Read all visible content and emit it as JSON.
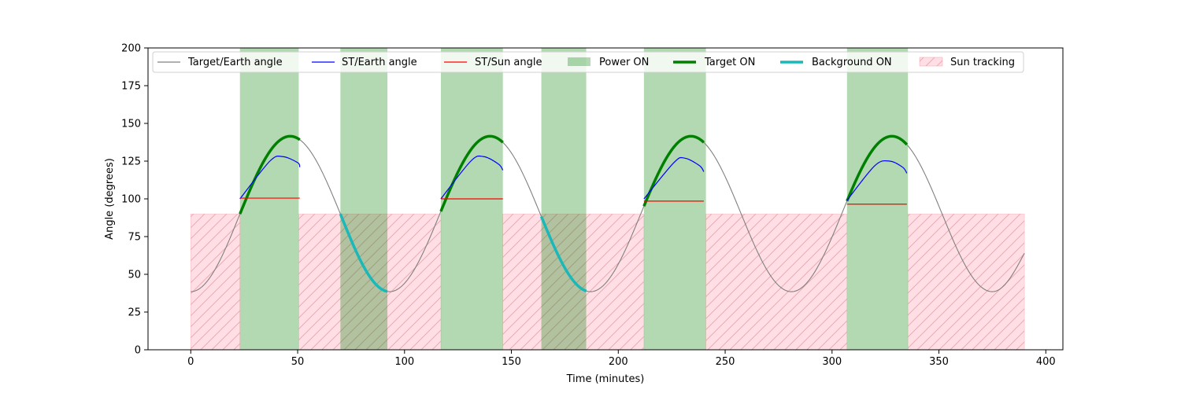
{
  "chart_data": {
    "type": "line",
    "xlabel": "Time (minutes)",
    "ylabel": "Angle (degrees)",
    "xlim": [
      -20,
      408
    ],
    "ylim": [
      0,
      200
    ],
    "xticks": [
      0,
      50,
      100,
      150,
      200,
      250,
      300,
      350,
      400
    ],
    "yticks": [
      0,
      25,
      50,
      75,
      100,
      125,
      150,
      175,
      200
    ],
    "grid": false,
    "legend_placement": "top",
    "target_earth": {
      "name": "Target/Earth angle",
      "color": "#808080",
      "x": [
        0,
        23,
        46.5,
        70,
        93,
        116.5,
        140,
        163.5,
        187,
        210.5,
        234,
        257.5,
        281,
        304.5,
        328,
        351.5,
        375,
        390
      ],
      "y": [
        38.5,
        90,
        141.5,
        90,
        38.5,
        90,
        141.5,
        90,
        38.5,
        90,
        141.5,
        90,
        38.5,
        90,
        141.5,
        90,
        38.5,
        64
      ]
    },
    "st_earth": {
      "name": "ST/Earth angle",
      "color": "#0000ff",
      "segments": [
        {
          "x": [
            23,
            37,
            43,
            50,
            51
          ],
          "y": [
            100,
            125,
            128,
            124,
            121
          ]
        },
        {
          "x": [
            117,
            131,
            137,
            144,
            146
          ],
          "y": [
            100,
            125,
            128,
            123,
            119
          ]
        },
        {
          "x": [
            212,
            226,
            231,
            238,
            240
          ],
          "y": [
            100,
            124,
            127,
            122,
            118
          ]
        },
        {
          "x": [
            307,
            320,
            327,
            333,
            335
          ],
          "y": [
            99,
            122,
            125,
            121,
            117
          ]
        }
      ]
    },
    "st_sun": {
      "name": "ST/Sun angle",
      "color": "#ff0000",
      "segments": [
        {
          "x": [
            23,
            51
          ],
          "y": [
            100.5,
            100.5
          ]
        },
        {
          "x": [
            117,
            146
          ],
          "y": [
            100,
            100
          ]
        },
        {
          "x": [
            212,
            240
          ],
          "y": [
            98.5,
            98.5
          ]
        },
        {
          "x": [
            307,
            335
          ],
          "y": [
            96.5,
            96.5
          ]
        }
      ]
    },
    "power_on": {
      "name": "Power ON",
      "color": "#008000",
      "opacity": 0.3,
      "spans": [
        [
          23,
          50.5
        ],
        [
          70,
          92
        ],
        [
          117,
          146
        ],
        [
          164,
          185
        ],
        [
          212,
          241
        ],
        [
          307,
          335.5
        ]
      ]
    },
    "target_on": {
      "name": "Target ON",
      "color": "#008000",
      "spans": [
        [
          23,
          51
        ],
        [
          117,
          146
        ],
        [
          212,
          240
        ],
        [
          307,
          335
        ]
      ]
    },
    "background_on": {
      "name": "Background ON",
      "color": "#1ab8b8",
      "spans": [
        [
          70,
          92
        ],
        [
          164,
          185
        ]
      ]
    },
    "sun_tracking": {
      "name": "Sun tracking",
      "color": "#ffc0cb",
      "hatch_color": "#f5a0a8",
      "ymax": 90,
      "spans": [
        [
          0,
          23
        ],
        [
          50.5,
          117
        ],
        [
          146,
          212
        ],
        [
          241,
          307
        ],
        [
          335.5,
          390
        ]
      ]
    }
  }
}
